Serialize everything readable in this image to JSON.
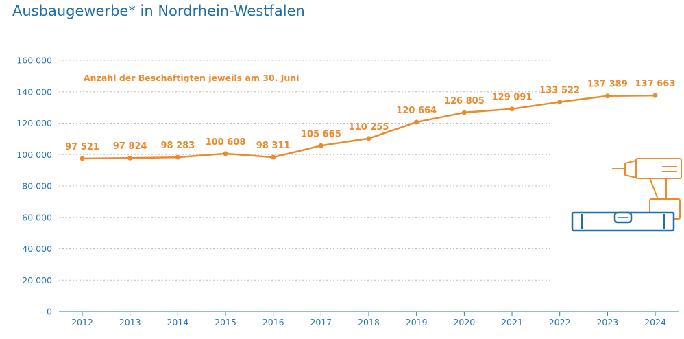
{
  "chart_data": {
    "type": "line",
    "title": "Ausbaugewerbe* in Nordrhein-Westfalen",
    "subtitle": "Anzahl der Beschäftigten jeweils am 30. Juni",
    "x": [
      "2012",
      "2013",
      "2014",
      "2015",
      "2016",
      "2017",
      "2018",
      "2019",
      "2020",
      "2021",
      "2022",
      "2023",
      "2024"
    ],
    "series": [
      {
        "values": [
          97521,
          97824,
          98283,
          100608,
          98311,
          105665,
          110255,
          120664,
          126805,
          129091,
          133522,
          137389,
          137663
        ],
        "labels": [
          "97 521",
          "97 824",
          "98 283",
          "100 608",
          "98 311",
          "105 665",
          "110 255",
          "120 664",
          "126 805",
          "129 091",
          "133 522",
          "137 389",
          "137 663"
        ]
      }
    ],
    "ylim": [
      0,
      160000
    ],
    "yticks": [
      "0",
      "20 000",
      "40 000",
      "60 000",
      "80 000",
      "100 000",
      "120 000",
      "140 000",
      "160 000"
    ],
    "grid": true,
    "colors": {
      "line": "#ec8a2c",
      "axis_text": "#2a78b0",
      "title": "#1f6fa8",
      "grid": "#bbbbbb"
    }
  },
  "decoration": {
    "icons": [
      "power-drill-icon",
      "spirit-level-icon"
    ]
  }
}
